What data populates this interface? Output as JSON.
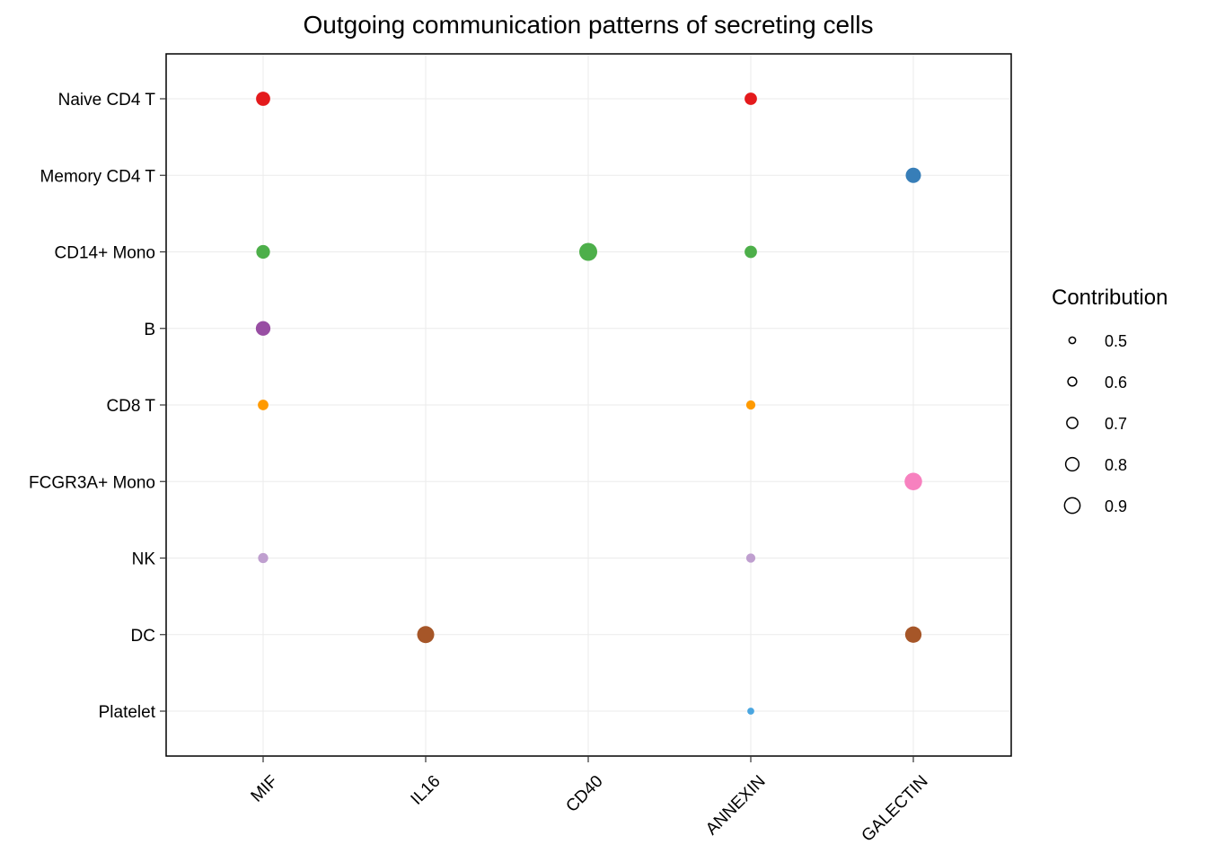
{
  "chart_data": {
    "type": "scatter",
    "title": "Outgoing communication patterns of secreting cells",
    "xlabel": "",
    "ylabel": "",
    "x_categories": [
      "MIF",
      "IL16",
      "CD40",
      "ANNEXIN",
      "GALECTIN"
    ],
    "y_categories": [
      "Naive CD4 T",
      "Memory CD4 T",
      "CD14+ Mono",
      "B",
      "CD8 T",
      "FCGR3A+ Mono",
      "NK",
      "DC",
      "Platelet"
    ],
    "cell_colors": {
      "Naive CD4 T": "#e41a1c",
      "Memory CD4 T": "#377eb8",
      "CD14+ Mono": "#4daf4a",
      "B": "#984ea3",
      "CD8 T": "#ff9a00",
      "FCGR3A+ Mono": "#f781bf",
      "NK": "#bf9fcf",
      "DC": "#a65628",
      "Platelet": "#4aa6e0"
    },
    "points": [
      {
        "x": "MIF",
        "y": "Naive CD4 T",
        "contribution": 0.8
      },
      {
        "x": "ANNEXIN",
        "y": "Naive CD4 T",
        "contribution": 0.72
      },
      {
        "x": "GALECTIN",
        "y": "Memory CD4 T",
        "contribution": 0.85
      },
      {
        "x": "MIF",
        "y": "CD14+ Mono",
        "contribution": 0.78
      },
      {
        "x": "CD40",
        "y": "CD14+ Mono",
        "contribution": 0.97
      },
      {
        "x": "ANNEXIN",
        "y": "CD14+ Mono",
        "contribution": 0.72
      },
      {
        "x": "MIF",
        "y": "B",
        "contribution": 0.82
      },
      {
        "x": "MIF",
        "y": "CD8 T",
        "contribution": 0.64
      },
      {
        "x": "ANNEXIN",
        "y": "CD8 T",
        "contribution": 0.58
      },
      {
        "x": "GALECTIN",
        "y": "FCGR3A+ Mono",
        "contribution": 0.95
      },
      {
        "x": "MIF",
        "y": "NK",
        "contribution": 0.62
      },
      {
        "x": "ANNEXIN",
        "y": "NK",
        "contribution": 0.58
      },
      {
        "x": "IL16",
        "y": "DC",
        "contribution": 0.93
      },
      {
        "x": "GALECTIN",
        "y": "DC",
        "contribution": 0.9
      },
      {
        "x": "ANNEXIN",
        "y": "Platelet",
        "contribution": 0.48
      }
    ],
    "legend": {
      "title": "Contribution",
      "placement": "right",
      "values": [
        "0.5",
        "0.6",
        "0.7",
        "0.8",
        "0.9"
      ]
    },
    "grid": true
  }
}
